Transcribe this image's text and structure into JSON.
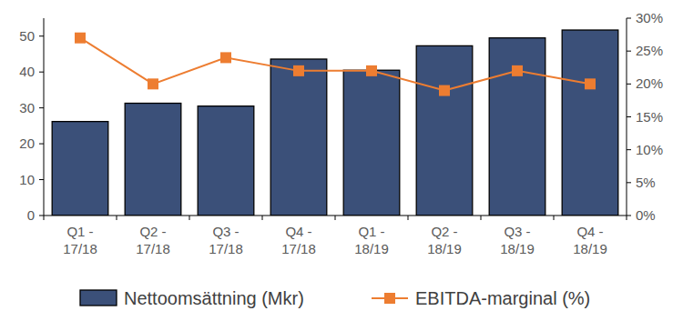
{
  "chart_data": {
    "type": "bar",
    "categories": [
      "Q1 - 17/18",
      "Q2 - 17/18",
      "Q3 - 17/18",
      "Q4 - 17/18",
      "Q1 - 18/19",
      "Q2 - 18/19",
      "Q3 - 18/19",
      "Q4 - 18/19"
    ],
    "series": [
      {
        "name": "Nettoomsättning (Mkr)",
        "type": "bar",
        "color": "#3b5079",
        "values": [
          26.2,
          31.3,
          30.5,
          43.6,
          40.5,
          47.3,
          49.5,
          51.7
        ]
      },
      {
        "name": "EBITDA-marginal (%)",
        "type": "line",
        "axis": "y2",
        "color": "#ed7d31",
        "marker": "square",
        "values": [
          27,
          20,
          24,
          22,
          22,
          19,
          22,
          20
        ]
      }
    ],
    "ylim": [
      0,
      55
    ],
    "yticks": [
      0,
      10,
      20,
      30,
      40,
      50
    ],
    "y2lim": [
      0,
      30
    ],
    "y2ticks": [
      {
        "value": 0,
        "label": "0%"
      },
      {
        "value": 5,
        "label": "5%"
      },
      {
        "value": 10,
        "label": "10%"
      },
      {
        "value": 15,
        "label": "15%"
      },
      {
        "value": 20,
        "label": "20%"
      },
      {
        "value": 25,
        "label": "25%"
      },
      {
        "value": 30,
        "label": "30%"
      }
    ],
    "grid": false,
    "legend": "bottom"
  }
}
